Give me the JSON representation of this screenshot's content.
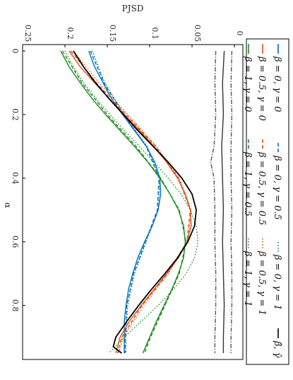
{
  "chart_data": {
    "type": "line",
    "orientation": "rotated-90-clockwise",
    "xlabel": "α",
    "ylabel": "PJSD",
    "xlim": [
      -0.02,
      0.97
    ],
    "ylim": [
      -0.01,
      0.25
    ],
    "xticks": [
      "0",
      "0.2",
      "0.4",
      "0.6",
      "0.8"
    ],
    "xtick_values": [
      0,
      0.2,
      0.4,
      0.6,
      0.8
    ],
    "yticks": [
      "0",
      "0.05",
      "0.1",
      "0.15",
      "0.2",
      "0.25"
    ],
    "ytick_values": [
      0,
      0.05,
      0.1,
      0.15,
      0.2,
      0.25
    ],
    "grid": false,
    "legend_placement": "top",
    "series": [
      {
        "name": "β = 0, γ = 0",
        "color": "#0072BD",
        "dash": "solid",
        "x": [
          0,
          0.05,
          0.1,
          0.15,
          0.2,
          0.25,
          0.3,
          0.35,
          0.4,
          0.45,
          0.5,
          0.55,
          0.6,
          0.65,
          0.7,
          0.75,
          0.8,
          0.85,
          0.9,
          0.95
        ],
        "y": [
          0.172,
          0.165,
          0.155,
          0.145,
          0.132,
          0.118,
          0.104,
          0.094,
          0.088,
          0.087,
          0.09,
          0.097,
          0.106,
          0.114,
          0.12,
          0.125,
          0.128,
          0.13,
          0.13,
          0.13
        ]
      },
      {
        "name": "β = 0, γ = 0.5",
        "color": "#0072BD",
        "dash": "dashed",
        "x": [
          0,
          0.1,
          0.2,
          0.3,
          0.4,
          0.5,
          0.6,
          0.7,
          0.8,
          0.9,
          0.95
        ],
        "y": [
          0.17,
          0.154,
          0.131,
          0.104,
          0.089,
          0.091,
          0.105,
          0.119,
          0.127,
          0.129,
          0.129
        ]
      },
      {
        "name": "β = 0, γ = 1",
        "color": "#0072BD",
        "dash": "dotted",
        "x": [
          0,
          0.1,
          0.2,
          0.3,
          0.4,
          0.5,
          0.6,
          0.7,
          0.8,
          0.9,
          0.95
        ],
        "y": [
          0.168,
          0.153,
          0.13,
          0.103,
          0.088,
          0.09,
          0.104,
          0.118,
          0.126,
          0.128,
          0.128
        ]
      },
      {
        "name": "β = 0.5, γ = 0",
        "color": "#D95319",
        "dash": "solid",
        "x": [
          0,
          0.05,
          0.1,
          0.15,
          0.2,
          0.25,
          0.3,
          0.35,
          0.4,
          0.45,
          0.5,
          0.55,
          0.6,
          0.65,
          0.7,
          0.75,
          0.8,
          0.85,
          0.9,
          0.95
        ],
        "y": [
          0.195,
          0.182,
          0.165,
          0.148,
          0.13,
          0.112,
          0.095,
          0.08,
          0.067,
          0.058,
          0.052,
          0.051,
          0.056,
          0.066,
          0.08,
          0.095,
          0.11,
          0.124,
          0.135,
          0.14
        ]
      },
      {
        "name": "β = 0.5, γ = 0.5",
        "color": "#D95319",
        "dash": "dashed",
        "x": [
          0,
          0.1,
          0.2,
          0.3,
          0.4,
          0.5,
          0.6,
          0.7,
          0.8,
          0.9,
          0.95
        ],
        "y": [
          0.193,
          0.163,
          0.128,
          0.093,
          0.066,
          0.052,
          0.056,
          0.079,
          0.109,
          0.133,
          0.138
        ]
      },
      {
        "name": "β = 0.5, γ = 1",
        "color": "#D95319",
        "dash": "dotted",
        "x": [
          0,
          0.1,
          0.2,
          0.3,
          0.4,
          0.5,
          0.6,
          0.7,
          0.8,
          0.9,
          0.95
        ],
        "y": [
          0.19,
          0.16,
          0.126,
          0.092,
          0.065,
          0.051,
          0.055,
          0.078,
          0.107,
          0.131,
          0.137
        ]
      },
      {
        "name": "β = 1, γ = 0",
        "color": "#1E8A1E",
        "dash": "solid",
        "x": [
          0,
          0.05,
          0.1,
          0.15,
          0.2,
          0.25,
          0.3,
          0.35,
          0.4,
          0.45,
          0.5,
          0.55,
          0.6,
          0.65,
          0.7,
          0.75,
          0.8,
          0.85,
          0.9,
          0.95
        ],
        "y": [
          0.205,
          0.195,
          0.182,
          0.168,
          0.152,
          0.135,
          0.118,
          0.102,
          0.088,
          0.076,
          0.066,
          0.06,
          0.058,
          0.06,
          0.066,
          0.074,
          0.083,
          0.092,
          0.1,
          0.108
        ]
      },
      {
        "name": "β = 1, γ = 0.5",
        "color": "#1E8A1E",
        "dash": "dashed",
        "x": [
          0,
          0.1,
          0.2,
          0.3,
          0.4,
          0.5,
          0.6,
          0.7,
          0.8,
          0.9,
          0.95
        ],
        "y": [
          0.203,
          0.18,
          0.15,
          0.116,
          0.087,
          0.065,
          0.057,
          0.065,
          0.082,
          0.099,
          0.106
        ]
      },
      {
        "name": "β = 1, γ = 1",
        "color": "#1E8A1E",
        "dash": "dotted",
        "x": [
          0,
          0.05,
          0.1,
          0.15,
          0.2,
          0.25,
          0.3,
          0.35,
          0.4,
          0.45,
          0.5,
          0.55,
          0.6,
          0.65,
          0.7,
          0.75,
          0.8,
          0.85,
          0.9,
          0.95
        ],
        "y": [
          0.2,
          0.19,
          0.178,
          0.163,
          0.147,
          0.13,
          0.112,
          0.095,
          0.078,
          0.063,
          0.052,
          0.045,
          0.043,
          0.047,
          0.057,
          0.072,
          0.09,
          0.11,
          0.13,
          0.148
        ]
      },
      {
        "name": "β̂, γ̂",
        "color": "#000000",
        "dash": "solid",
        "x": [
          0,
          0.05,
          0.1,
          0.15,
          0.2,
          0.25,
          0.3,
          0.35,
          0.4,
          0.45,
          0.5,
          0.55,
          0.6,
          0.65,
          0.7,
          0.75,
          0.8,
          0.85,
          0.9,
          0.93,
          0.95
        ],
        "y": [
          0.19,
          0.178,
          0.164,
          0.148,
          0.131,
          0.114,
          0.096,
          0.078,
          0.062,
          0.05,
          0.045,
          0.047,
          0.055,
          0.067,
          0.082,
          0.098,
          0.113,
          0.127,
          0.14,
          0.143,
          0.133
        ]
      },
      {
        "name": "",
        "color": "#333333",
        "dash": "solid",
        "x": [
          0,
          0.1,
          0.2,
          0.3,
          0.4,
          0.5,
          0.6,
          0.7,
          0.8,
          0.9,
          0.95
        ],
        "y": [
          0.012,
          0.014,
          0.013,
          0.015,
          0.014,
          0.013,
          0.014,
          0.013,
          0.012,
          0.013,
          0.013
        ]
      },
      {
        "name": "",
        "color": "#555555",
        "dash": "dashdot",
        "x": [
          0,
          0.1,
          0.2,
          0.3,
          0.35,
          0.4,
          0.5,
          0.6,
          0.7,
          0.8,
          0.9,
          0.95
        ],
        "y": [
          0.022,
          0.023,
          0.022,
          0.024,
          0.028,
          0.024,
          0.023,
          0.023,
          0.022,
          0.022,
          0.023,
          0.023
        ]
      },
      {
        "name": "",
        "color": "#555555",
        "dash": "dashdot",
        "x": [
          0,
          0.1,
          0.2,
          0.3,
          0.4,
          0.5,
          0.6,
          0.7,
          0.8,
          0.9,
          0.95
        ],
        "y": [
          0.003,
          0.004,
          0.003,
          0.004,
          0.004,
          0.003,
          0.004,
          0.003,
          0.003,
          0.004,
          0.004
        ]
      }
    ],
    "legend_entries": [
      "β = 0, γ = 0",
      "β = 0, γ = 0.5",
      "β = 0, γ = 1",
      "β̂, γ̂",
      "β = 0.5, γ = 0",
      "β = 0.5, γ = 0.5",
      "β = 0.5, γ = 1",
      "β = 1, γ = 0",
      "β = 1, γ = 0.5",
      "β = 1, γ = 1"
    ]
  }
}
